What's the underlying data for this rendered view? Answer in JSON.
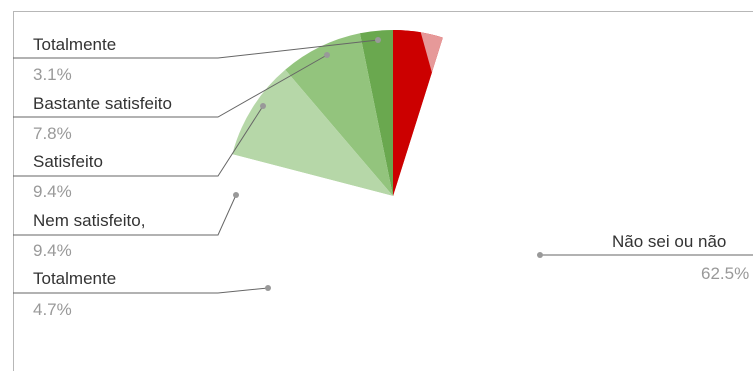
{
  "chart_data": {
    "type": "pie",
    "title": "",
    "legend": "none",
    "categories": [
      "Totalmente",
      "Bastante satisfeito",
      "Satisfeito",
      "Nem satisfeito,",
      "Não sei ou não",
      "Totalmente"
    ],
    "values": [
      3.1,
      7.8,
      9.4,
      9.4,
      62.5,
      4.7
    ],
    "value_labels": [
      "3.1%",
      "7.8%",
      "9.4%",
      "9.4%",
      "62.5%",
      "4.7%"
    ],
    "colors": [
      "#6aa84f",
      "#93c47d",
      "#b6d7a8",
      "#ffffff",
      "#ffffff",
      "#cc0000"
    ],
    "extra_band_colors": [
      "#e69999"
    ]
  }
}
